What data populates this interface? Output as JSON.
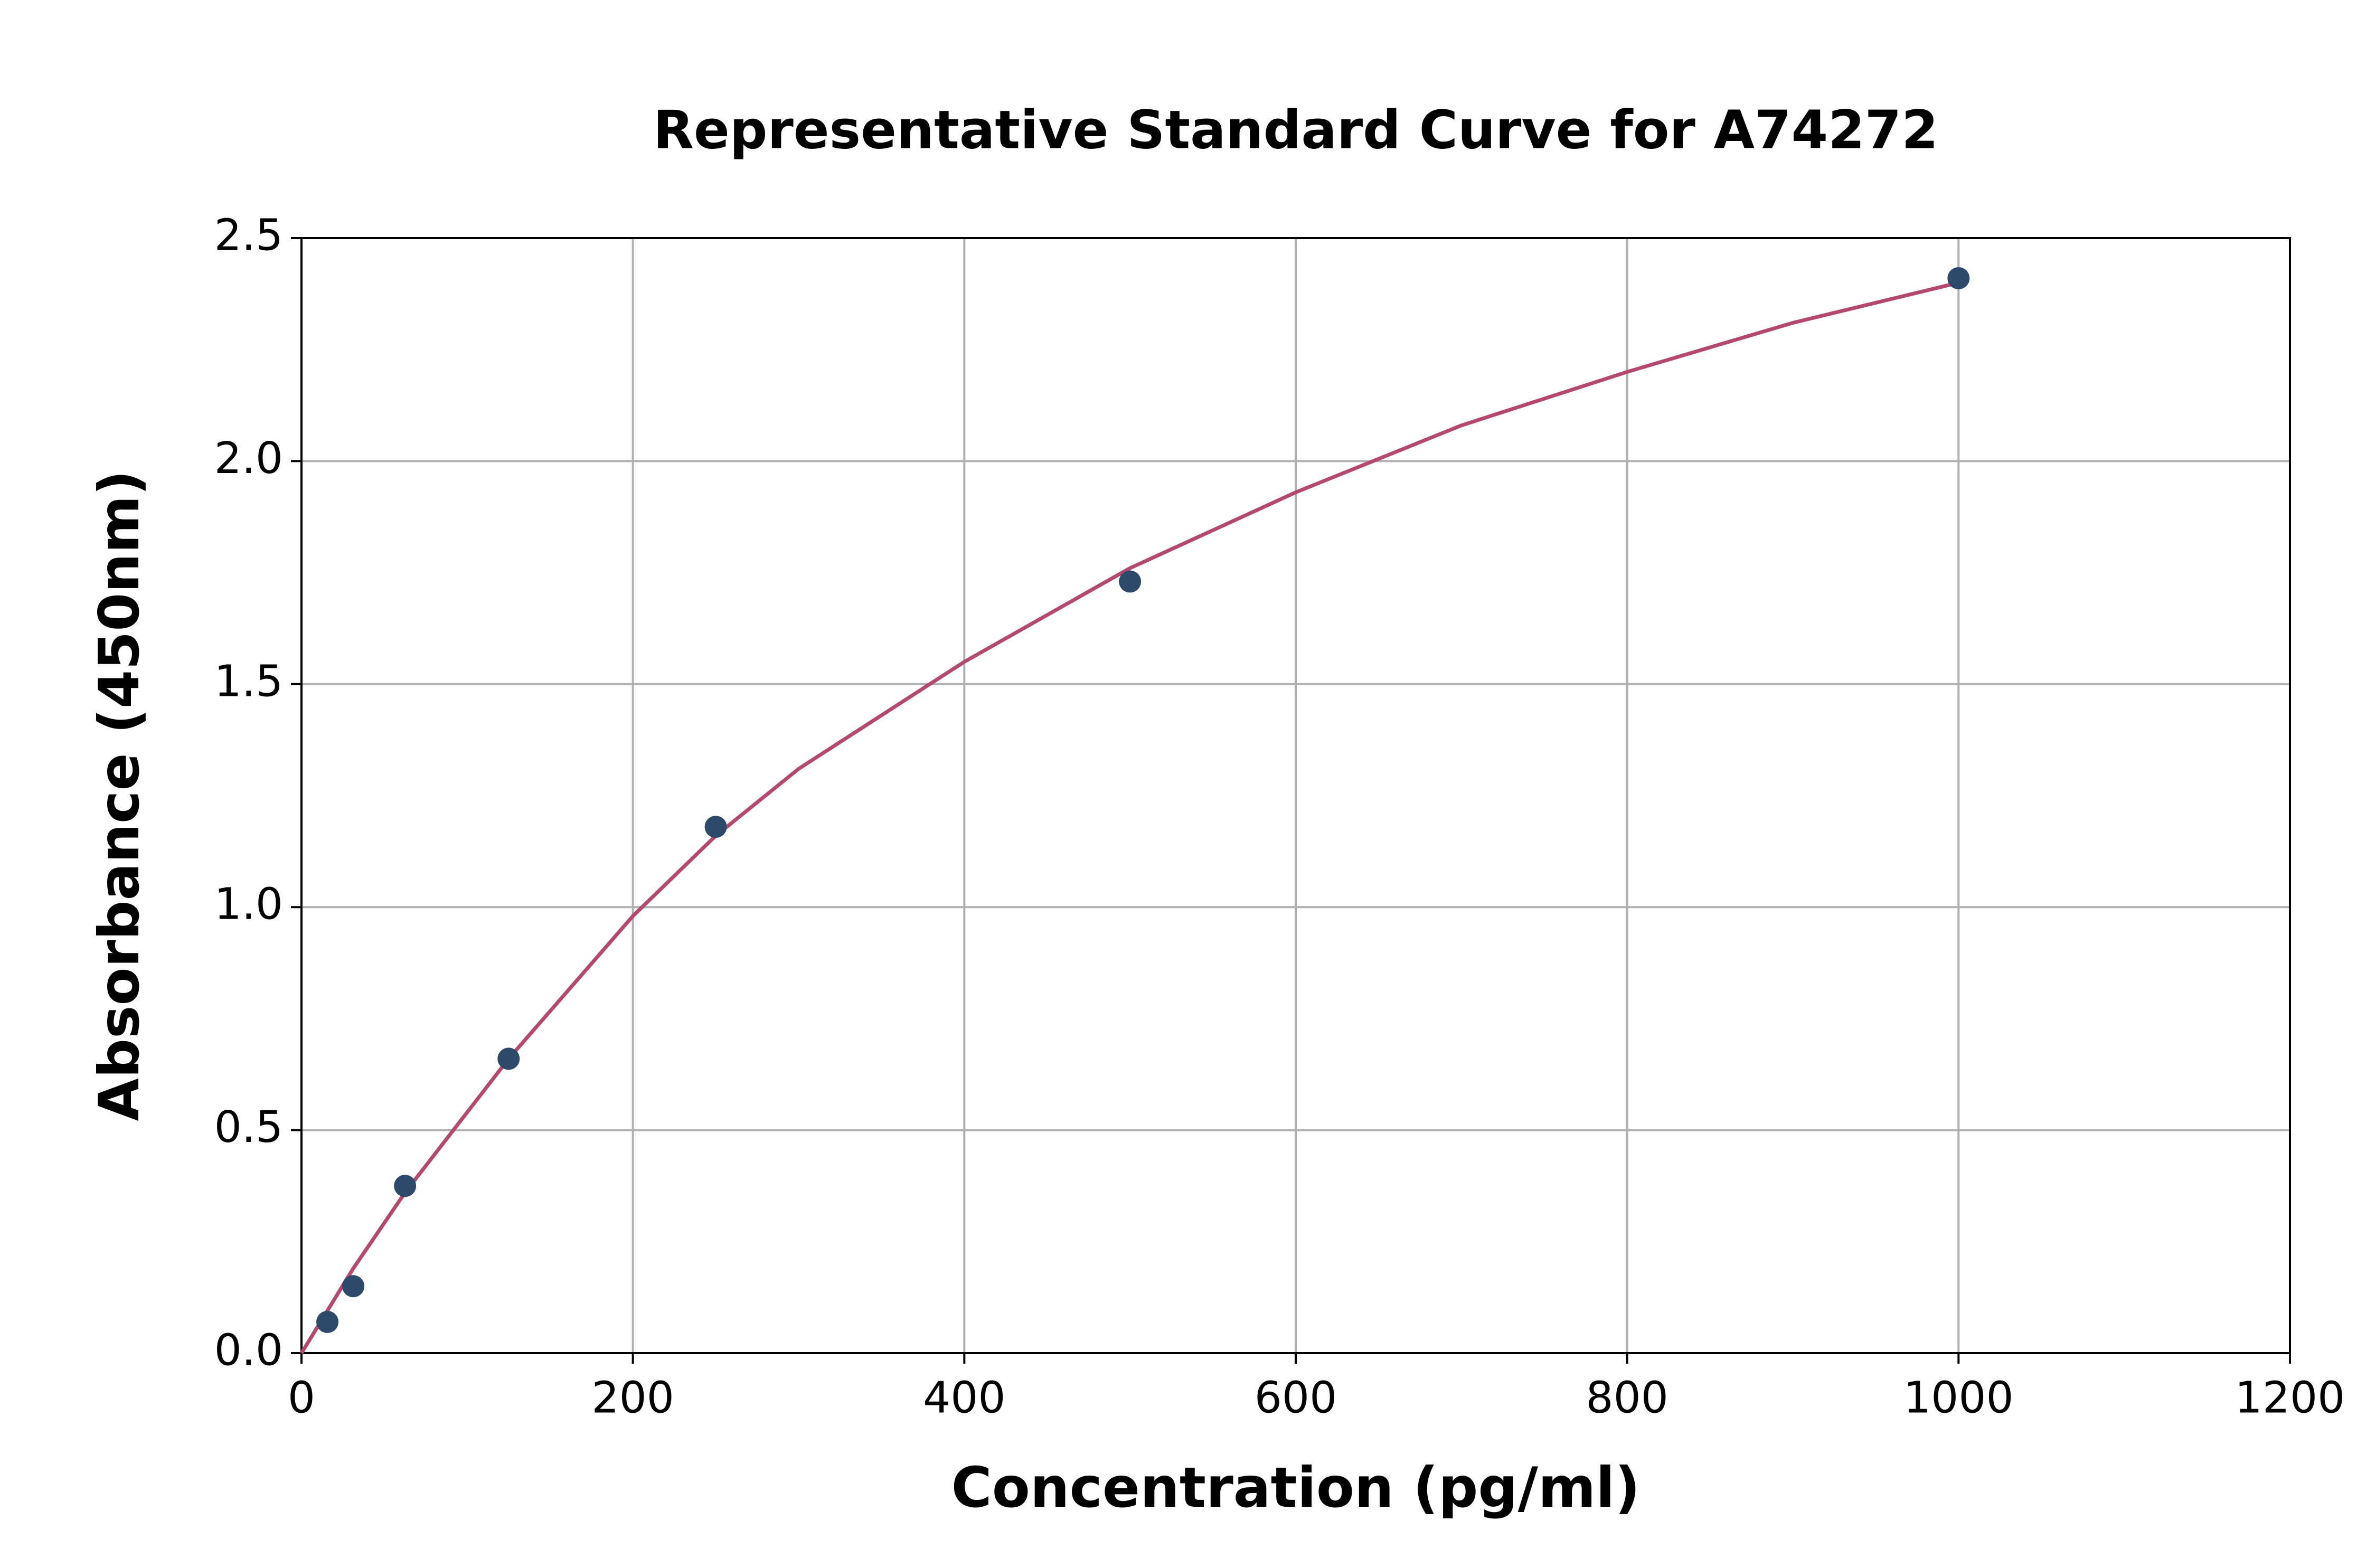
{
  "chart_data": {
    "type": "scatter",
    "title": "Representative Standard Curve for A74272",
    "x_label": "Concentration (pg/ml)",
    "y_label": "Absorbance (450nm)",
    "series": [
      {
        "mode": "line",
        "color": "#b5486f",
        "x": [
          0,
          31.25,
          62.5,
          125,
          200,
          250,
          300,
          400,
          500,
          600,
          700,
          800,
          900,
          1000
        ],
        "values": [
          0,
          0.19,
          0.36,
          0.66,
          0.98,
          1.16,
          1.31,
          1.55,
          1.76,
          1.93,
          2.08,
          2.2,
          2.31,
          2.4
        ]
      },
      {
        "mode": "markers",
        "color": "#2e4a6b",
        "x": [
          15.625,
          31.25,
          62.5,
          125,
          250,
          500,
          1000
        ],
        "values": [
          0.07,
          0.15,
          0.375,
          0.66,
          1.18,
          1.73,
          2.41
        ]
      }
    ],
    "xlim": [
      0,
      1200
    ],
    "xticks": [
      0,
      200,
      400,
      600,
      800,
      1000,
      1200
    ],
    "ylim": [
      0,
      2.5
    ],
    "yticks": [
      {
        "value": 0,
        "label": "0.0"
      },
      0.5,
      {
        "value": 1,
        "label": "1.0"
      },
      1.5,
      {
        "value": 2,
        "label": "2.0"
      },
      2.5
    ],
    "grid": true
  }
}
